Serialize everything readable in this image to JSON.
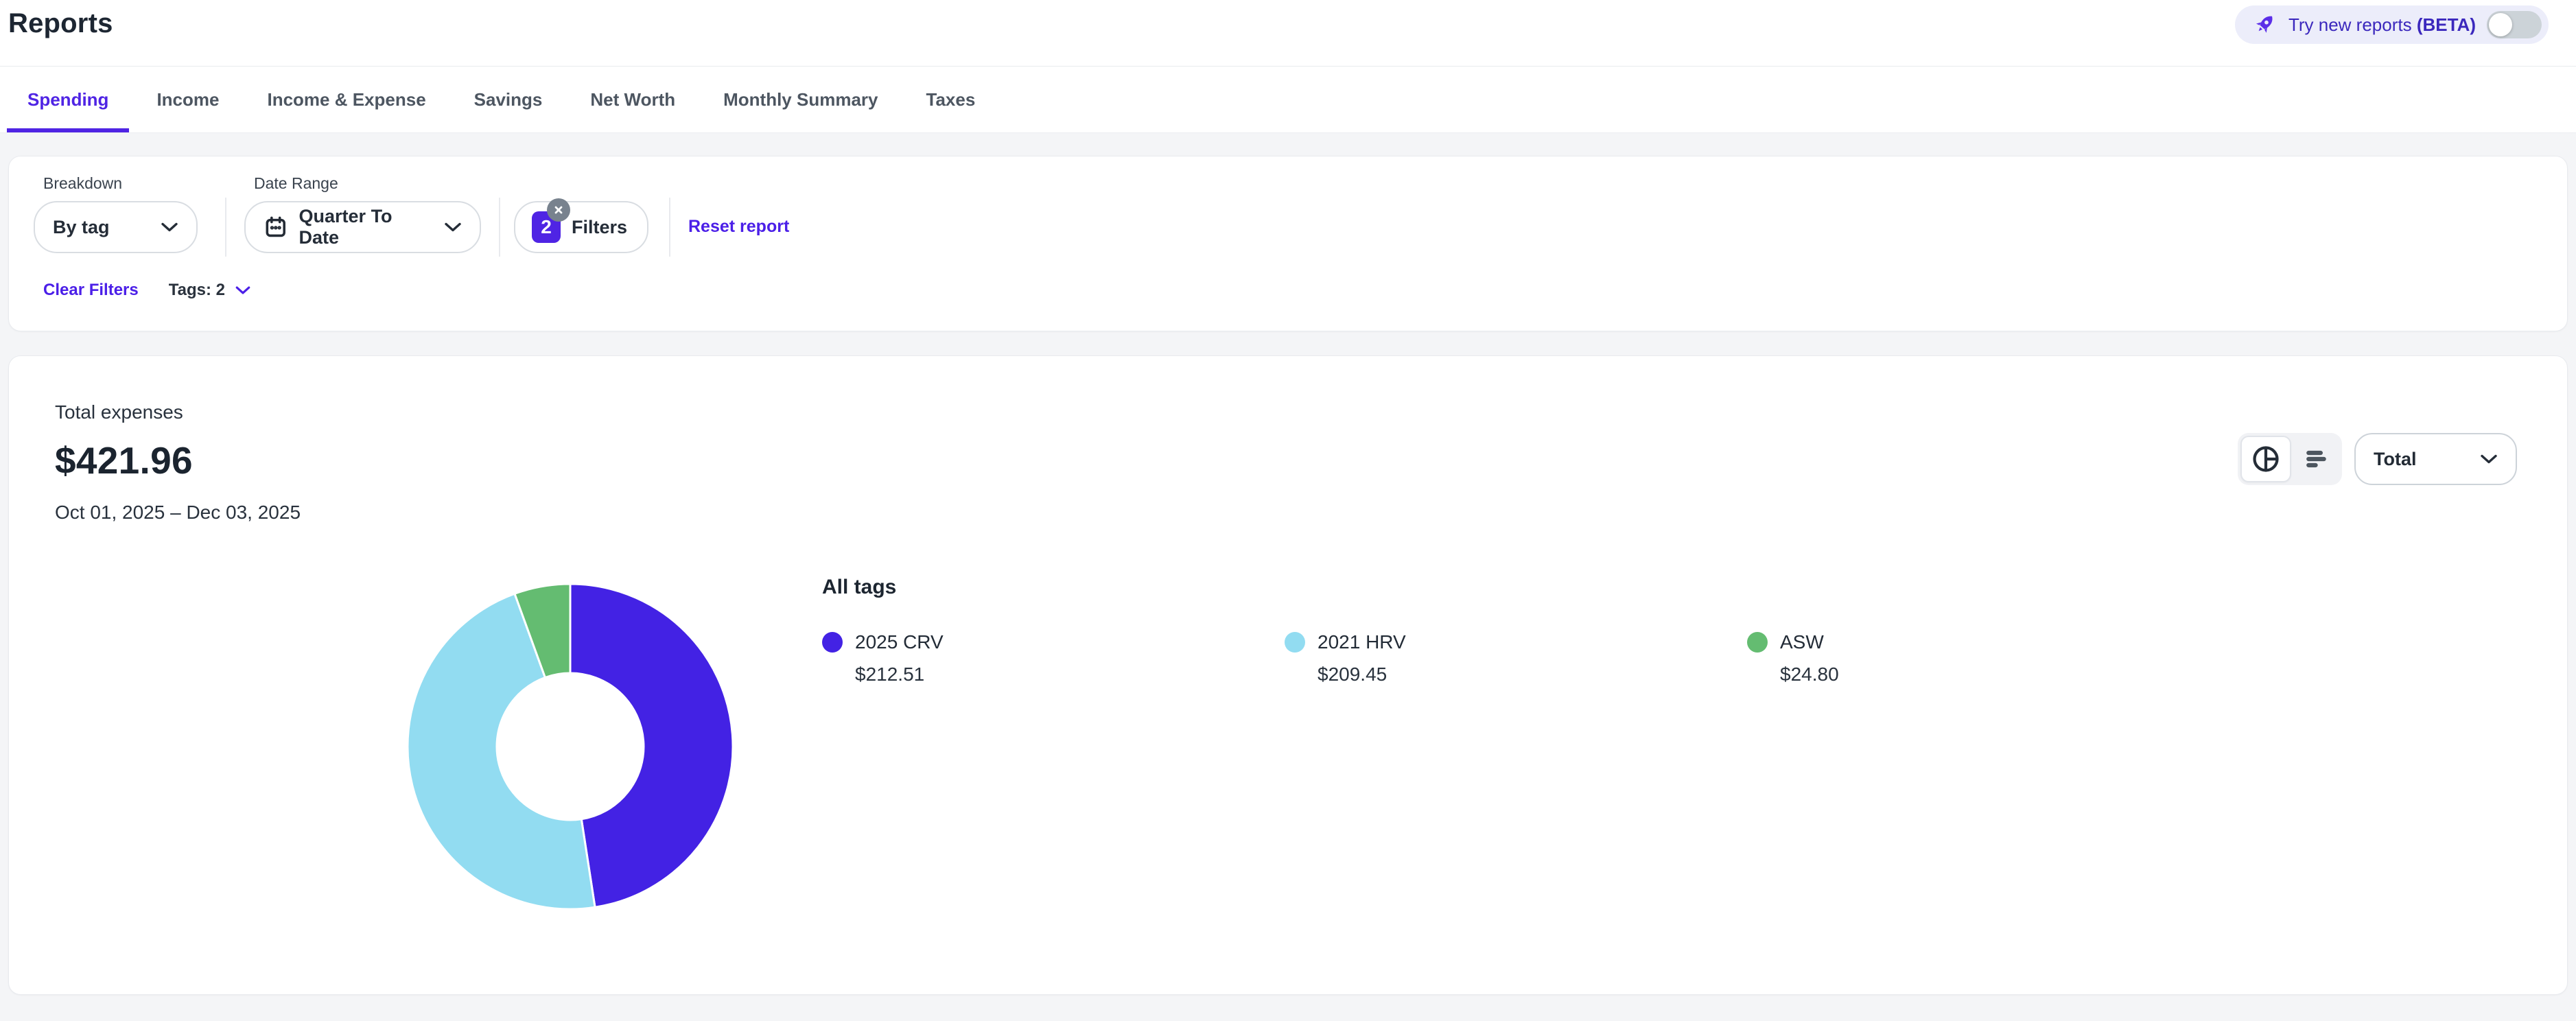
{
  "header": {
    "title": "Reports",
    "beta_banner": {
      "icon": "rocket-icon",
      "text": "Try new reports",
      "beta": "(BETA)",
      "toggle_on": false
    }
  },
  "tabs": {
    "items": [
      {
        "label": "Spending",
        "active": true
      },
      {
        "label": "Income",
        "active": false
      },
      {
        "label": "Income & Expense",
        "active": false
      },
      {
        "label": "Savings",
        "active": false
      },
      {
        "label": "Net Worth",
        "active": false
      },
      {
        "label": "Monthly Summary",
        "active": false
      },
      {
        "label": "Taxes",
        "active": false
      }
    ]
  },
  "filters": {
    "breakdown": {
      "label": "Breakdown",
      "value": "By tag"
    },
    "date_range": {
      "label": "Date Range",
      "value": "Quarter To Date",
      "icon": "calendar-icon"
    },
    "filters_button": {
      "count": "2",
      "label": "Filters",
      "clear_icon": "close-icon"
    },
    "reset_link": "Reset report",
    "clear_filters": "Clear Filters",
    "tags_summary": "Tags: 2"
  },
  "report": {
    "summary": {
      "label": "Total expenses",
      "total": "$421.96",
      "period": "Oct 01, 2025 – Dec 03, 2025"
    },
    "chart_type_toggle": {
      "options": [
        "pie-chart-icon",
        "bar-chart-icon"
      ],
      "selected": "pie-chart-icon"
    },
    "view_select": {
      "value": "Total"
    }
  },
  "chart_data": {
    "type": "pie",
    "donut": true,
    "title": "All tags",
    "series": [
      {
        "name": "2025 CRV",
        "value": 212.51,
        "display": "$212.51",
        "color": "#4322e4"
      },
      {
        "name": "2021 HRV",
        "value": 209.45,
        "display": "$209.45",
        "color": "#92dcf1"
      },
      {
        "name": "ASW",
        "value": 24.8,
        "display": "$24.80",
        "color": "#64bc71"
      }
    ],
    "total_label": "Total expenses",
    "total_display": "$421.96",
    "period": "Oct 01, 2025 – Dec 03, 2025",
    "start_angle_deg": 0,
    "direction": "clockwise",
    "legend_position": "right"
  },
  "icons": {
    "rocket-icon": "rocket shape",
    "calendar-icon": "calendar",
    "chevron-down-icon": "v",
    "close-icon": "x",
    "pie-chart-icon": "circle with radius lines",
    "bar-chart-icon": "three horizontal bars"
  },
  "colors": {
    "accent_purple": "#4f24e4",
    "link_purple": "#4b1fe8",
    "beta_pill_bg": "#ecedfa",
    "beta_text": "#3b28bd",
    "page_bg": "#f4f5f7",
    "badge_gray": "#78828e",
    "toggle_track": "#ccd3d8",
    "donut_purple": "#4322e4",
    "donut_cyan": "#92dcf1",
    "donut_green": "#64bc71"
  }
}
